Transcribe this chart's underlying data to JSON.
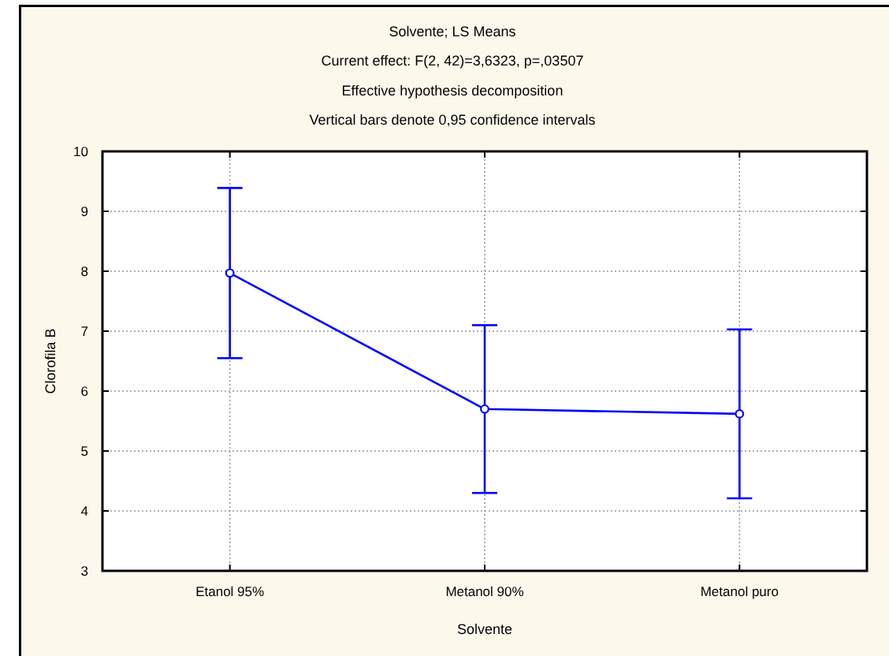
{
  "chart_data": {
    "type": "line",
    "title": "Solvente; LS Means",
    "subtitle": "Current effect: F(2, 42)=3,6323, p=,03507",
    "annotations": [
      "Effective hypothesis decomposition",
      "Vertical bars denote 0,95 confidence intervals"
    ],
    "xlabel": "Solvente",
    "ylabel": "Clorofila B",
    "categories": [
      "Etanol 95%",
      "Metanol 90%",
      "Metanol puro"
    ],
    "series": [
      {
        "color": "#0000ff",
        "values": [
          7.97,
          5.7,
          5.62
        ],
        "errors": [
          1.42,
          1.4,
          1.41
        ]
      }
    ],
    "ylim": [
      3,
      10
    ],
    "yticks": [
      3,
      4,
      5,
      6,
      7,
      8,
      9,
      10
    ],
    "grid": true,
    "marker": "circle",
    "line_style": "solid"
  }
}
